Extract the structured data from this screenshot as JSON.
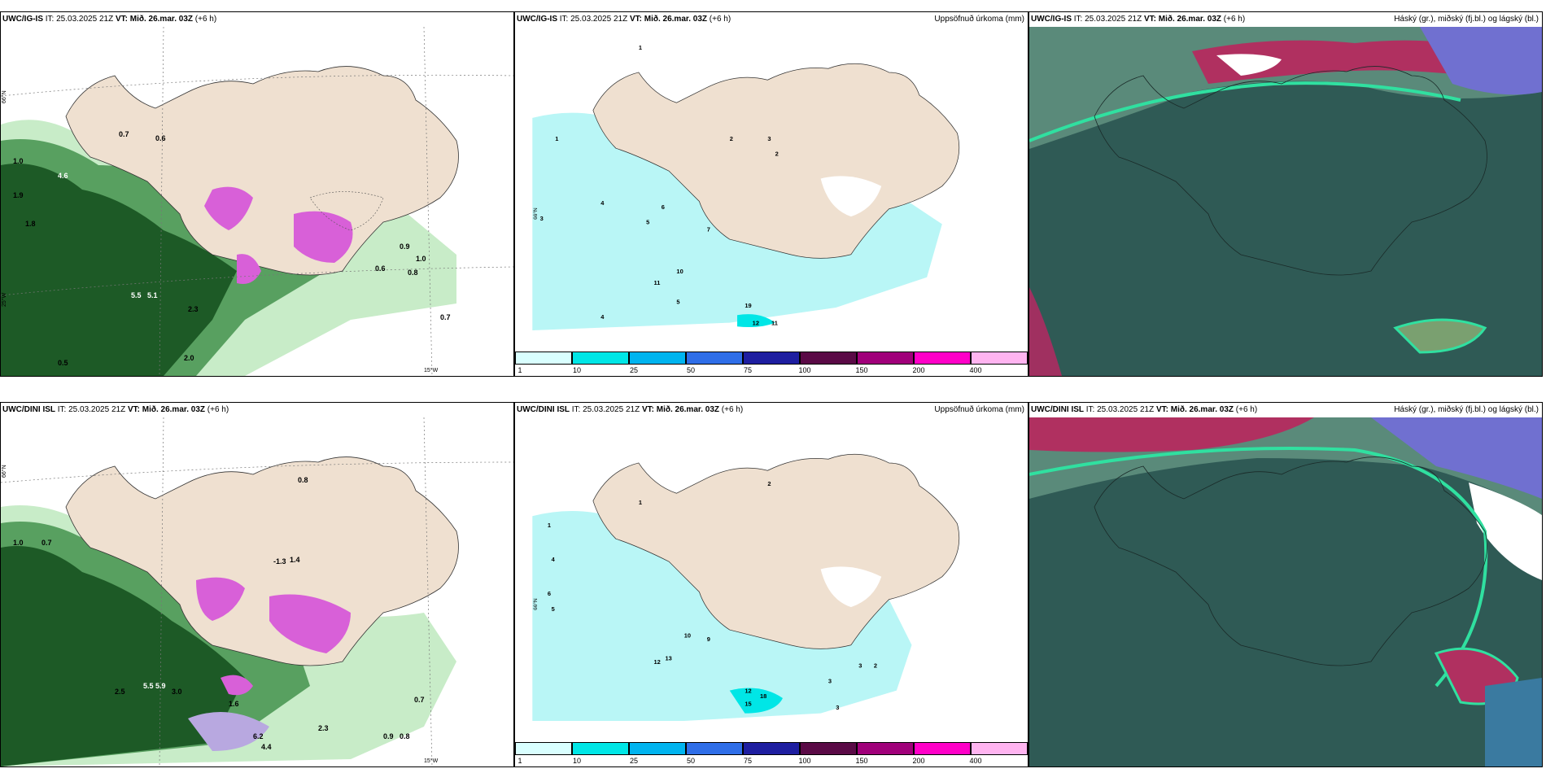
{
  "rows": [
    {
      "model": "UWC/IG-IS",
      "it": "IT: 25.03.2025 21Z",
      "vt_label": "VT:",
      "vt_value": "Mið. 26.mar. 03Z",
      "lead": "(+6 h)"
    },
    {
      "model": "UWC/DINI ISL",
      "it": "IT: 25.03.2025 21Z",
      "vt_label": "VT:",
      "vt_value": "Mið. 26.mar. 03Z",
      "lead": "(+6 h)"
    }
  ],
  "precip_title": "Uppsöfnuð úrkoma (mm)",
  "cloud_title": "Háský (gr.), miðský (fj.bl.) og lágský (bl.)",
  "grid_labels": {
    "lat66": "66°N",
    "lon15": "15°W",
    "lon25": "25°W"
  },
  "colorbar": {
    "ticks": [
      "1",
      "10",
      "25",
      "50",
      "75",
      "100",
      "150",
      "200",
      "400"
    ],
    "colors": [
      "#d9ffff",
      "#00e6e6",
      "#00b4ef",
      "#2f6ee8",
      "#1e1ea0",
      "#5a0a46",
      "#a0007a",
      "#ff00c8",
      "#ffb4f0"
    ]
  },
  "colors": {
    "land": "#efe0d0",
    "precip_light": "#b9f6f6",
    "cloud_bg": "#2f5a55",
    "green_dark": "#1d5a26",
    "green_mid": "#58a060",
    "green_light": "#c8ecc8",
    "purple": "#d860d8"
  },
  "top_wind_values": [
    "0.7",
    "0.6",
    "1.0",
    "4.6",
    "1.9",
    "1.8",
    "0.9",
    "1.0",
    "5.5",
    "5.1",
    "2.3",
    "0.7",
    "0.5",
    "2.0",
    "0.8",
    "0.6"
  ],
  "bottom_wind_values": [
    "1.0",
    "0.7",
    "0.8",
    "-1.3",
    "1.4",
    "5.5",
    "5.9",
    "2.5",
    "3.0",
    "1.6",
    "6.2",
    "4.4",
    "2.3",
    "0.9",
    "0.8",
    "0.7"
  ],
  "top_precip_values": [
    "1",
    "1",
    "2",
    "3",
    "2",
    "3",
    "4",
    "5",
    "6",
    "7",
    "10",
    "11",
    "5",
    "4",
    "12",
    "11",
    "19"
  ],
  "bottom_precip_values": [
    "1",
    "2",
    "1",
    "4",
    "6",
    "5",
    "13",
    "12",
    "10",
    "9",
    "3",
    "2",
    "15",
    "18",
    "12",
    "3",
    "3"
  ]
}
